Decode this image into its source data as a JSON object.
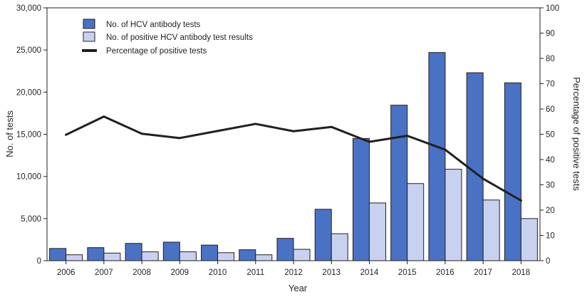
{
  "chart_data": {
    "type": "bar",
    "categories": [
      "2006",
      "2007",
      "2008",
      "2009",
      "2010",
      "2011",
      "2012",
      "2013",
      "2014",
      "2015",
      "2016",
      "2017",
      "2018"
    ],
    "series": [
      {
        "name": "No. of HCV antibody tests",
        "kind": "bar",
        "axis": "left",
        "color": "#4a72c4",
        "values": [
          1450,
          1550,
          2050,
          2200,
          1850,
          1300,
          2650,
          6100,
          14500,
          18450,
          24700,
          22300,
          21100
        ]
      },
      {
        "name": "No. of positive HCV antibody test results",
        "kind": "bar",
        "axis": "left",
        "color": "#c8d2f0",
        "values": [
          700,
          900,
          1050,
          1050,
          950,
          700,
          1350,
          3200,
          6850,
          9150,
          10850,
          7200,
          5000
        ]
      },
      {
        "name": "Percentage of positive tests",
        "kind": "line",
        "axis": "right",
        "color": "#231f20",
        "values": [
          49.8,
          57,
          50.2,
          48.5,
          51.3,
          54.1,
          51.2,
          52.9,
          47,
          49.4,
          43.9,
          32.4,
          23.8
        ]
      }
    ],
    "xlabel": "Year",
    "ylabel": "No. of tests",
    "ylabel_right": "Percentage of positive tests",
    "ylim": [
      0,
      30000
    ],
    "ylim_right": [
      0,
      100
    ],
    "yticks": [
      "0",
      "5,000",
      "10,000",
      "15,000",
      "20,000",
      "25,000",
      "30,000"
    ],
    "yticks_right": [
      "0",
      "10",
      "20",
      "30",
      "40",
      "50",
      "60",
      "70",
      "80",
      "90",
      "100"
    ],
    "legend_position": "top-left",
    "grid": false
  }
}
